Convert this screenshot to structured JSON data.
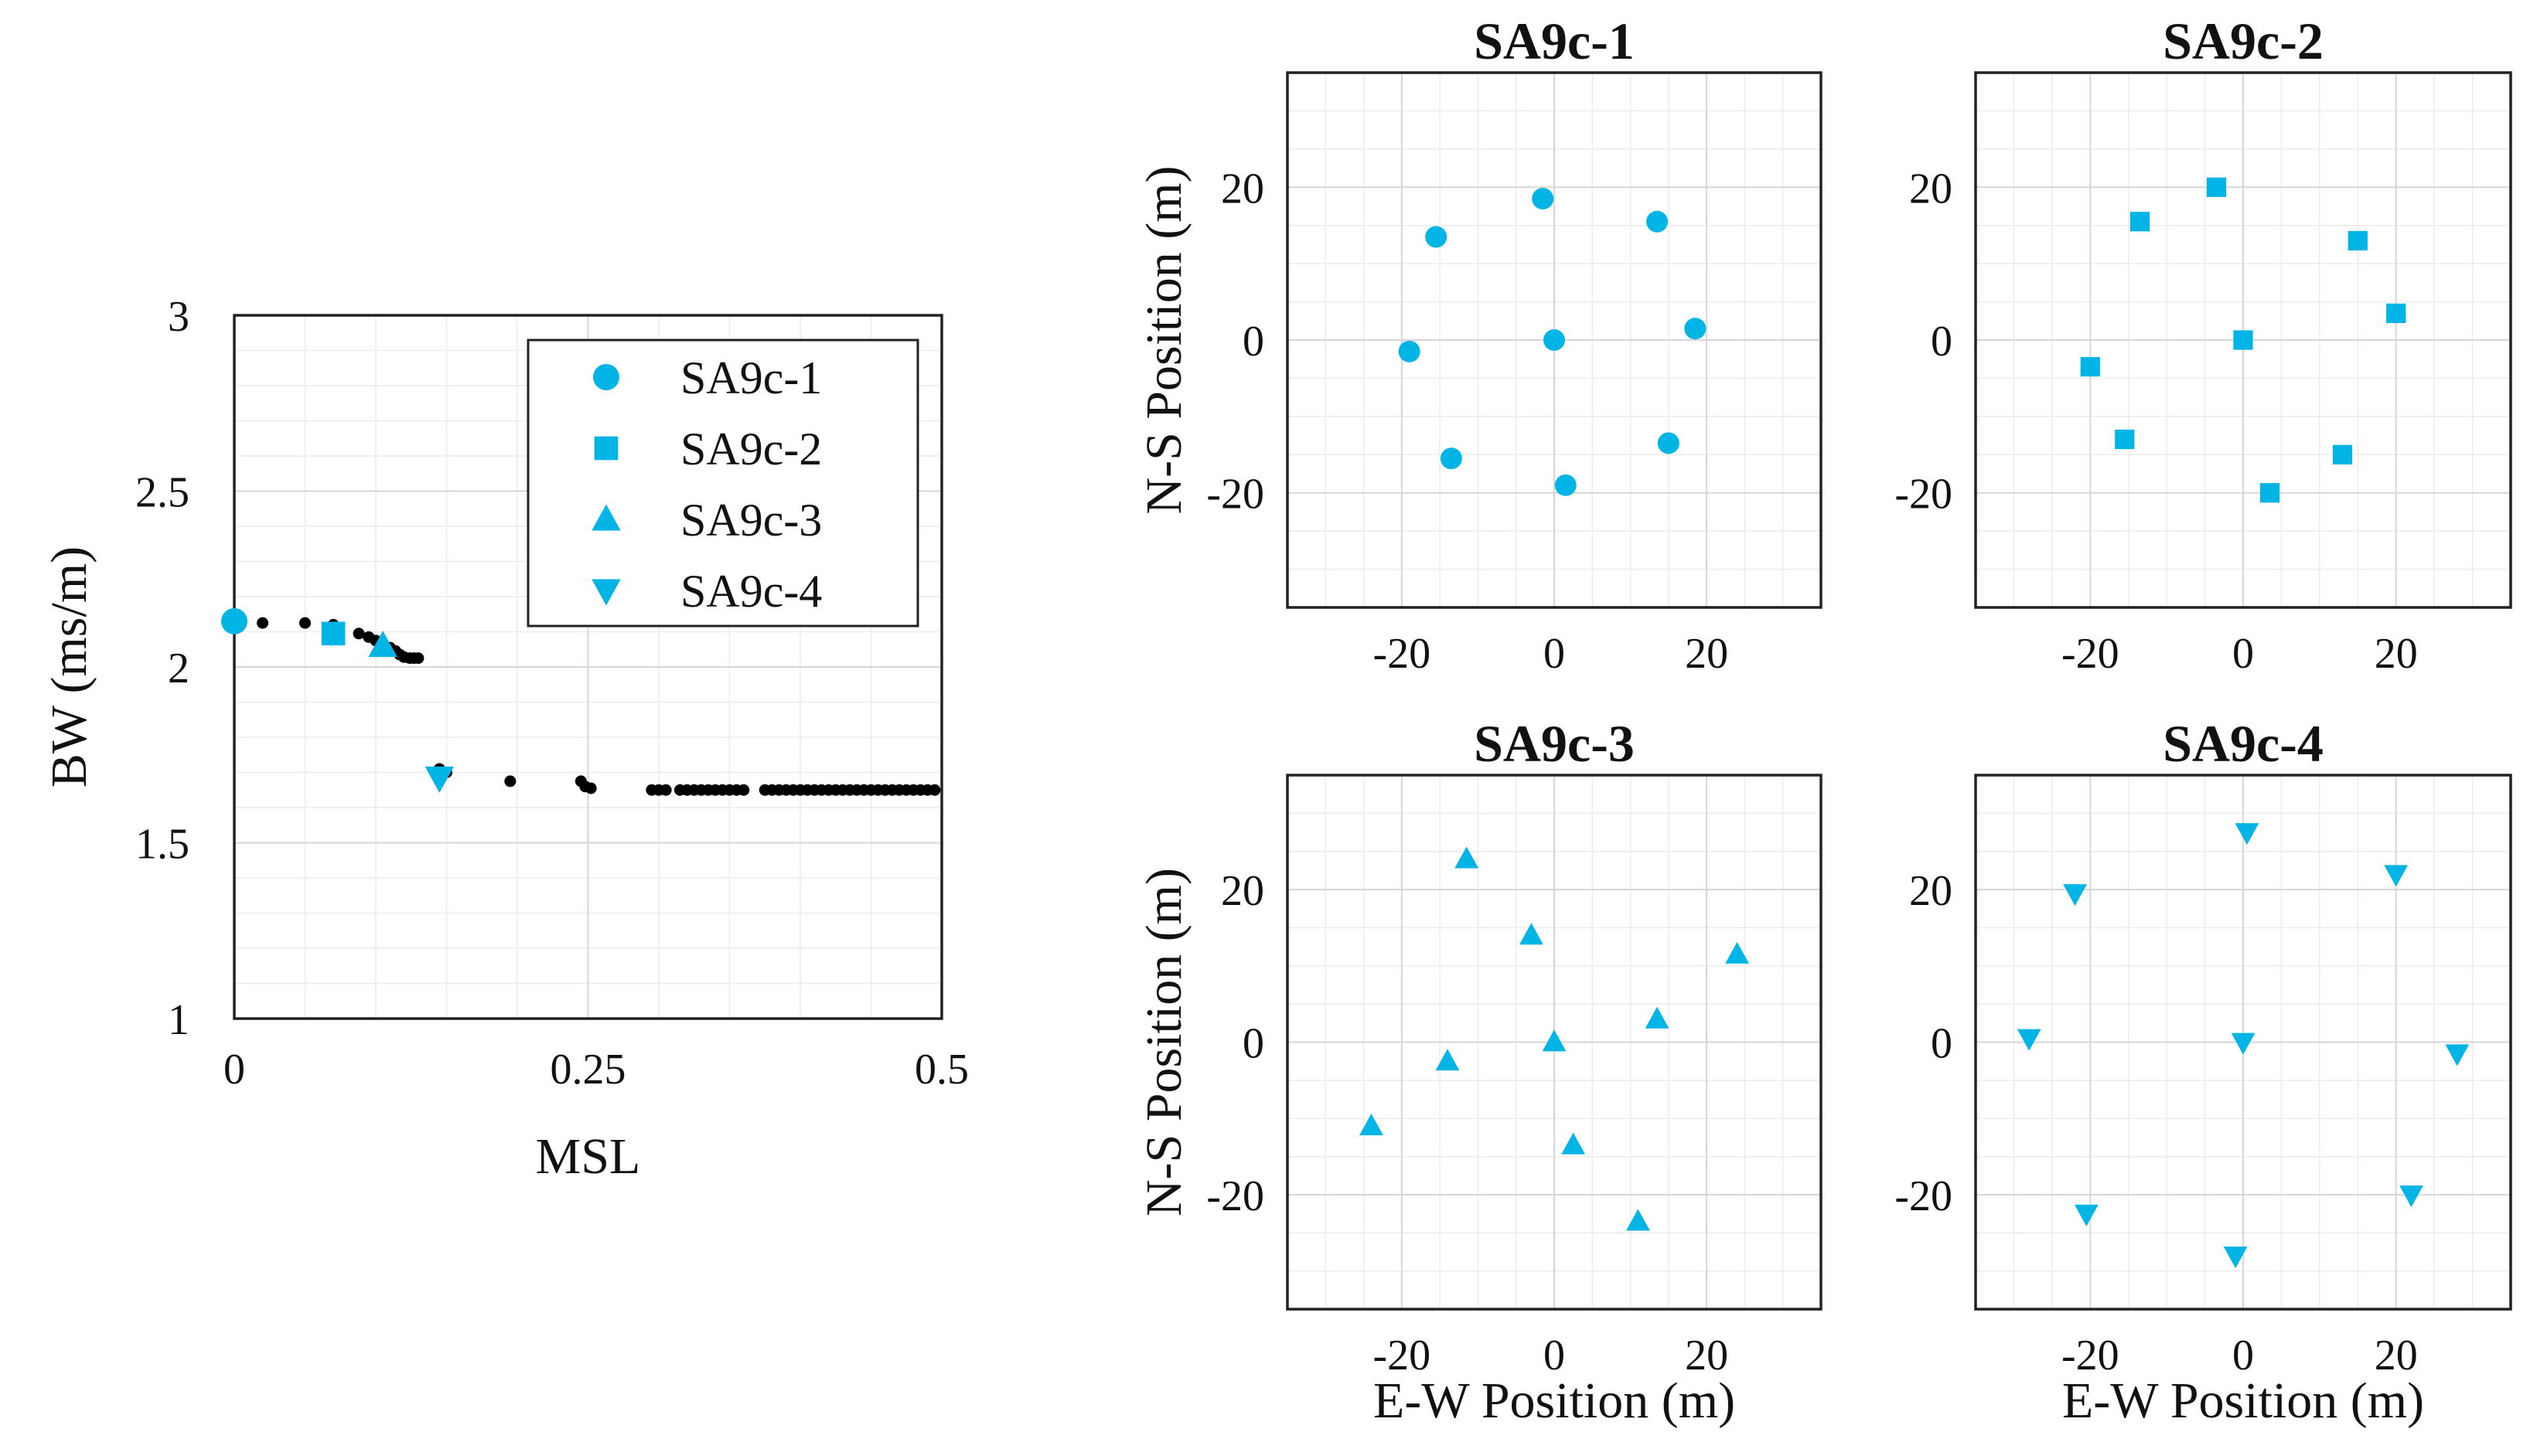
{
  "colors": {
    "marker": "#00B4E6",
    "black_points": "#000000",
    "axis": "#222222"
  },
  "chart_data": [
    {
      "type": "scatter",
      "id": "bw-msl",
      "title": "",
      "xlabel": "MSL",
      "ylabel": "BW (ms/m)",
      "xlim": [
        0,
        0.5
      ],
      "ylim": [
        1,
        3
      ],
      "xticks": [
        0,
        0.25,
        0.5
      ],
      "xtick_labels": [
        "0",
        "0.25",
        "0.5"
      ],
      "yticks": [
        1,
        1.5,
        2,
        2.5,
        3
      ],
      "ytick_labels": [
        "1",
        "1.5",
        "2",
        "2.5",
        "3"
      ],
      "grid": true,
      "legend_position": "top-right",
      "black_points": [
        [
          0.02,
          2.125
        ],
        [
          0.05,
          2.125
        ],
        [
          0.07,
          2.12
        ],
        [
          0.088,
          2.095
        ],
        [
          0.095,
          2.085
        ],
        [
          0.1,
          2.075
        ],
        [
          0.105,
          2.065
        ],
        [
          0.11,
          2.055
        ],
        [
          0.114,
          2.045
        ],
        [
          0.117,
          2.035
        ],
        [
          0.12,
          2.028
        ],
        [
          0.124,
          2.025
        ],
        [
          0.127,
          2.025
        ],
        [
          0.13,
          2.025
        ],
        [
          0.145,
          1.71
        ],
        [
          0.15,
          1.7
        ],
        [
          0.195,
          1.675
        ],
        [
          0.245,
          1.675
        ],
        [
          0.248,
          1.66
        ],
        [
          0.252,
          1.655
        ],
        [
          0.295,
          1.65
        ],
        [
          0.3,
          1.65
        ],
        [
          0.305,
          1.65
        ],
        [
          0.315,
          1.65
        ],
        [
          0.32,
          1.65
        ],
        [
          0.325,
          1.65
        ],
        [
          0.33,
          1.65
        ],
        [
          0.335,
          1.65
        ],
        [
          0.34,
          1.65
        ],
        [
          0.345,
          1.65
        ],
        [
          0.35,
          1.65
        ],
        [
          0.355,
          1.65
        ],
        [
          0.36,
          1.65
        ],
        [
          0.375,
          1.65
        ],
        [
          0.38,
          1.65
        ],
        [
          0.385,
          1.65
        ],
        [
          0.39,
          1.65
        ],
        [
          0.395,
          1.65
        ],
        [
          0.4,
          1.65
        ],
        [
          0.405,
          1.65
        ],
        [
          0.41,
          1.65
        ],
        [
          0.415,
          1.65
        ],
        [
          0.42,
          1.65
        ],
        [
          0.425,
          1.65
        ],
        [
          0.43,
          1.65
        ],
        [
          0.435,
          1.65
        ],
        [
          0.44,
          1.65
        ],
        [
          0.445,
          1.65
        ],
        [
          0.45,
          1.65
        ],
        [
          0.455,
          1.65
        ],
        [
          0.46,
          1.65
        ],
        [
          0.465,
          1.65
        ],
        [
          0.47,
          1.65
        ],
        [
          0.475,
          1.65
        ],
        [
          0.48,
          1.65
        ],
        [
          0.485,
          1.65
        ],
        [
          0.49,
          1.65
        ],
        [
          0.495,
          1.65
        ]
      ],
      "series": [
        {
          "name": "SA9c-1",
          "marker": "circle",
          "x": 0.0,
          "y": 2.13
        },
        {
          "name": "SA9c-2",
          "marker": "square",
          "x": 0.07,
          "y": 2.095
        },
        {
          "name": "SA9c-3",
          "marker": "triangle-up",
          "x": 0.105,
          "y": 2.06
        },
        {
          "name": "SA9c-4",
          "marker": "triangle-down",
          "x": 0.145,
          "y": 1.685
        }
      ]
    },
    {
      "type": "scatter",
      "id": "SA9c-1",
      "title": "SA9c-1",
      "marker": "circle",
      "xlabel": "",
      "ylabel": "N-S Position (m)",
      "xlim": [
        -35,
        35
      ],
      "ylim": [
        -35,
        35
      ],
      "xticks": [
        -20,
        0,
        20
      ],
      "xtick_labels": [
        "-20",
        "0",
        "20"
      ],
      "yticks": [
        -20,
        0,
        20
      ],
      "ytick_labels": [
        "-20",
        "0",
        "20"
      ],
      "grid": true,
      "points": [
        [
          -1.5,
          18.5
        ],
        [
          13.5,
          15.5
        ],
        [
          -15.5,
          13.5
        ],
        [
          -19,
          -1.5
        ],
        [
          0,
          0
        ],
        [
          18.5,
          1.5
        ],
        [
          -13.5,
          -15.5
        ],
        [
          15,
          -13.5
        ],
        [
          1.5,
          -19
        ]
      ]
    },
    {
      "type": "scatter",
      "id": "SA9c-2",
      "title": "SA9c-2",
      "marker": "square",
      "xlabel": "",
      "ylabel": "",
      "xlim": [
        -35,
        35
      ],
      "ylim": [
        -35,
        35
      ],
      "xticks": [
        -20,
        0,
        20
      ],
      "xtick_labels": [
        "-20",
        "0",
        "20"
      ],
      "yticks": [
        -20,
        0,
        20
      ],
      "ytick_labels": [
        "-20",
        "0",
        "20"
      ],
      "grid": true,
      "points": [
        [
          -3.5,
          20
        ],
        [
          -13.5,
          15.5
        ],
        [
          15,
          13
        ],
        [
          20,
          3.5
        ],
        [
          0,
          0
        ],
        [
          -20,
          -3.5
        ],
        [
          -15.5,
          -13
        ],
        [
          13,
          -15
        ],
        [
          3.5,
          -20
        ]
      ]
    },
    {
      "type": "scatter",
      "id": "SA9c-3",
      "title": "SA9c-3",
      "marker": "triangle-up",
      "xlabel": "E-W Position (m)",
      "ylabel": "N-S Position (m)",
      "xlim": [
        -35,
        35
      ],
      "ylim": [
        -35,
        35
      ],
      "xticks": [
        -20,
        0,
        20
      ],
      "xtick_labels": [
        "-20",
        "0",
        "20"
      ],
      "yticks": [
        -20,
        0,
        20
      ],
      "ytick_labels": [
        "-20",
        "0",
        "20"
      ],
      "grid": true,
      "points": [
        [
          -11.5,
          24
        ],
        [
          -3,
          14
        ],
        [
          24,
          11.5
        ],
        [
          13.5,
          3
        ],
        [
          0,
          0
        ],
        [
          -14,
          -2.5
        ],
        [
          -24,
          -11
        ],
        [
          2.5,
          -13.5
        ],
        [
          11,
          -23.5
        ]
      ]
    },
    {
      "type": "scatter",
      "id": "SA9c-4",
      "title": "SA9c-4",
      "marker": "triangle-down",
      "xlabel": "E-W Position (m)",
      "ylabel": "",
      "xlim": [
        -35,
        35
      ],
      "ylim": [
        -35,
        35
      ],
      "xticks": [
        -20,
        0,
        20
      ],
      "xtick_labels": [
        "-20",
        "0",
        "20"
      ],
      "yticks": [
        -20,
        0,
        20
      ],
      "ytick_labels": [
        "-20",
        "0",
        "20"
      ],
      "grid": true,
      "points": [
        [
          0.5,
          27.5
        ],
        [
          -22,
          19.5
        ],
        [
          20,
          22
        ],
        [
          -28,
          0.5
        ],
        [
          0,
          0
        ],
        [
          28,
          -1.5
        ],
        [
          -20.5,
          -22.5
        ],
        [
          22,
          -20
        ],
        [
          -1,
          -28
        ]
      ]
    }
  ]
}
